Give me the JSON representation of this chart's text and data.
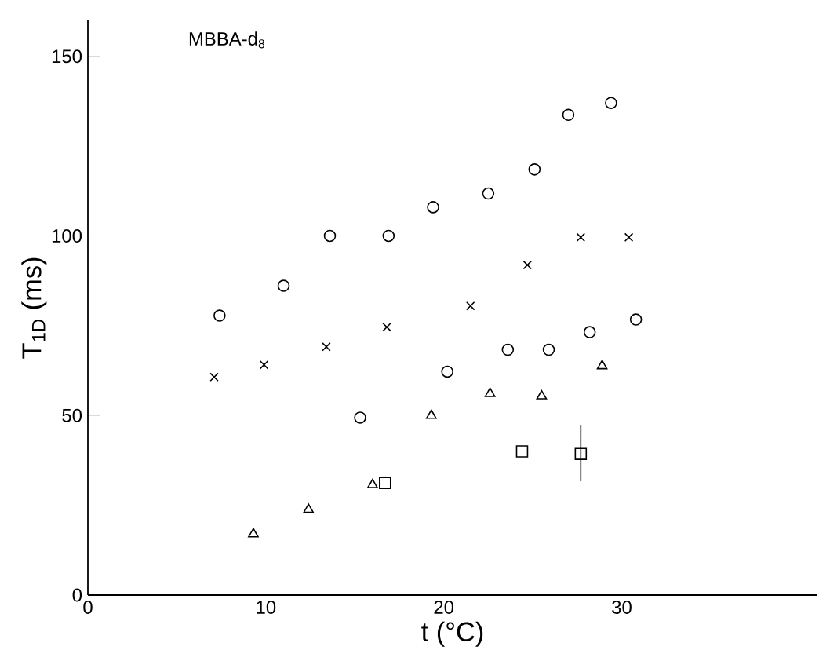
{
  "chart_data": {
    "type": "scatter",
    "xlabel": "t (°C)",
    "ylabel": "T$_{1D}$ (ms)",
    "annotations": [
      "MBBA-d$_{8}$"
    ],
    "xlim": [
      0,
      41
    ],
    "ylim": [
      0,
      160
    ],
    "xticks": [
      0,
      10,
      20,
      30
    ],
    "yticks": [
      0,
      50,
      100,
      150
    ],
    "grid": false,
    "series": [
      {
        "color": "#000000",
        "marker": "circle",
        "x": [
          7.4,
          11.0,
          13.6,
          16.9,
          19.4,
          22.5,
          25.1,
          27.0,
          29.4
        ],
        "values": [
          77.8,
          86.1,
          100,
          100,
          108,
          111.8,
          118.5,
          133.7,
          137
        ]
      },
      {
        "color": "#000000",
        "marker": "cross",
        "x": [
          7.1,
          9.9,
          13.4,
          16.8,
          21.5,
          24.7,
          27.7,
          30.4
        ],
        "values": [
          60.7,
          64.1,
          69.1,
          74.6,
          80.5,
          91.9,
          99.6,
          99.6
        ]
      },
      {
        "color": "#000000",
        "marker": "circle",
        "x": [
          15.3,
          20.2,
          23.6,
          25.9,
          28.2,
          30.8
        ],
        "values": [
          49.4,
          62.2,
          68.3,
          68.3,
          73.2,
          76.7
        ]
      },
      {
        "color": "#000000",
        "marker": "triangle",
        "x": [
          9.3,
          12.4,
          16.0,
          19.3,
          22.6,
          25.5,
          28.9
        ],
        "values": [
          17.0,
          23.8,
          30.7,
          50,
          56.1,
          55.4,
          63.8
        ]
      },
      {
        "color": "#000000",
        "marker": "square",
        "x": [
          16.7,
          24.4,
          27.7
        ],
        "values": [
          31.2,
          40,
          39.3
        ],
        "errors": [
          null,
          null,
          [
            31.7,
            47.4
          ]
        ]
      }
    ]
  }
}
